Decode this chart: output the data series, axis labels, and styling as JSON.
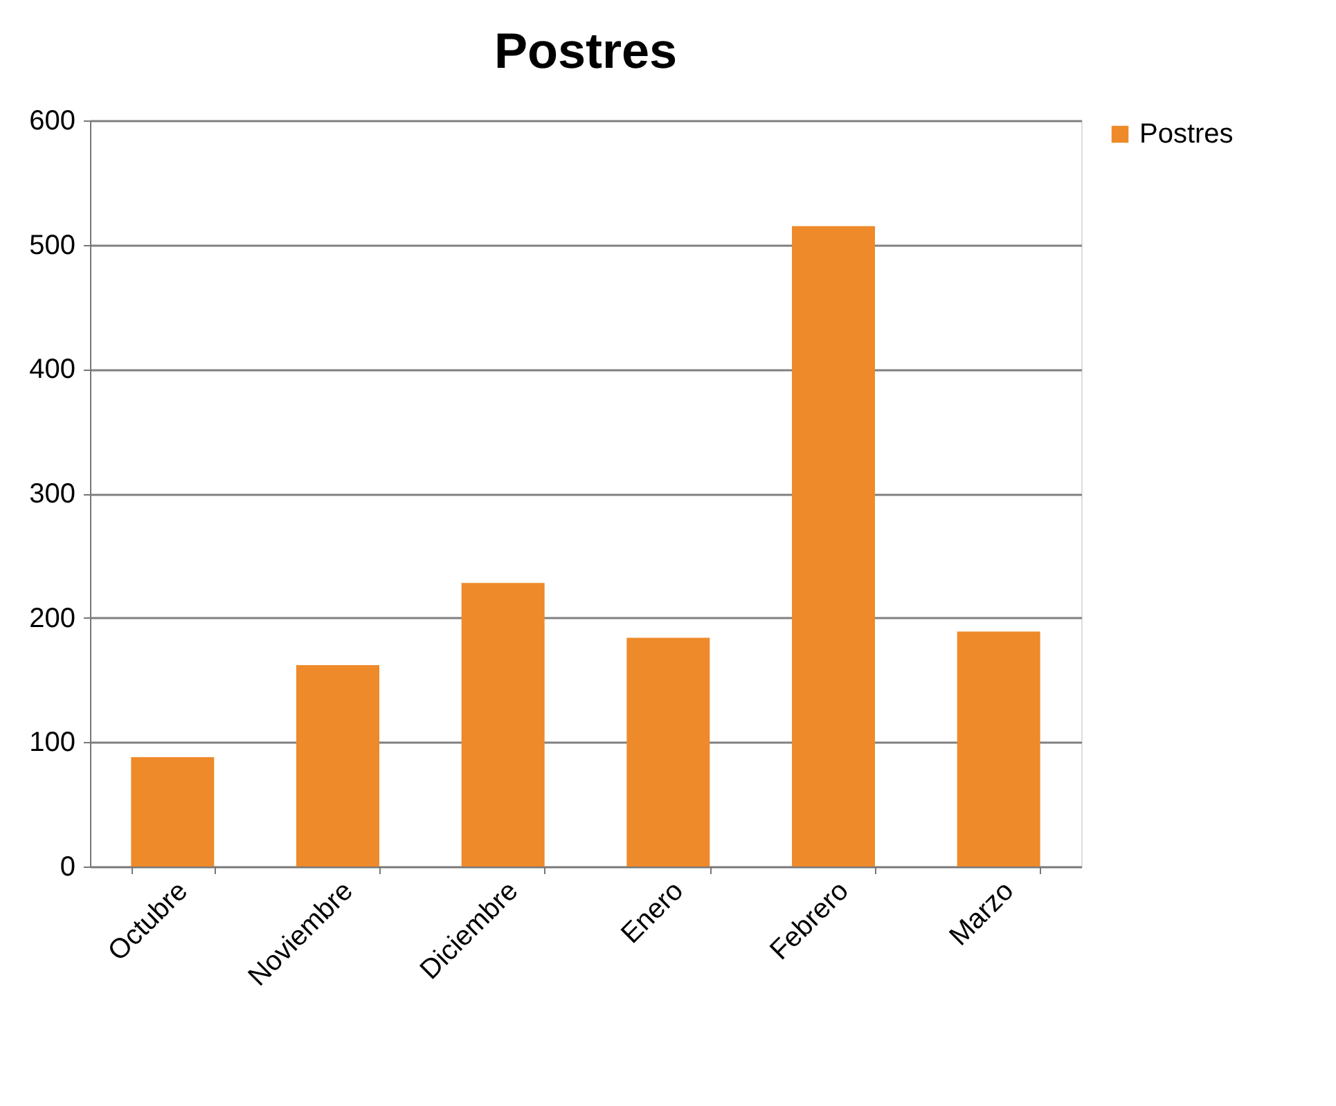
{
  "chart_data": {
    "type": "bar",
    "title": "Postres",
    "categories": [
      "Octubre",
      "Noviembre",
      "Diciembre",
      "Enero",
      "Febrero",
      "Marzo"
    ],
    "series": [
      {
        "name": "Postres",
        "color": "#ee8a2a",
        "values": [
          88,
          162,
          228,
          184,
          515,
          189
        ]
      }
    ],
    "ylim": [
      0,
      600
    ],
    "yticks": [
      0,
      100,
      200,
      300,
      400,
      500,
      600
    ],
    "grid": "y",
    "legend": "right"
  }
}
